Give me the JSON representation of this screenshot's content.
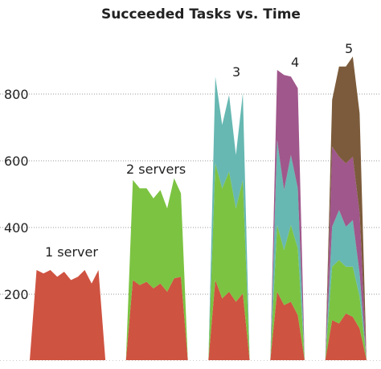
{
  "chart_data": {
    "type": "area",
    "title": "Succeeded Tasks vs. Time",
    "xlabel": "",
    "ylabel": "",
    "ylim": [
      0,
      990
    ],
    "y_ticks": [
      200,
      400,
      600,
      800
    ],
    "grid": true,
    "stacked": true,
    "colors": [
      "#cf5341",
      "#7cc342",
      "#67b8b2",
      "#a0578b",
      "#7b5b3b"
    ],
    "series": [
      {
        "values": [
          0,
          270,
          260,
          270,
          250,
          265,
          240,
          250,
          270,
          230,
          270,
          0,
          0,
          0,
          0,
          240,
          225,
          235,
          215,
          230,
          205,
          245,
          250,
          0,
          0,
          0,
          0,
          240,
          185,
          205,
          175,
          200,
          0,
          0,
          0,
          0,
          205,
          165,
          175,
          135,
          0,
          0,
          0,
          0,
          120,
          110,
          140,
          130,
          95,
          0
        ]
      },
      {
        "values": [
          0,
          0,
          0,
          0,
          0,
          0,
          0,
          0,
          0,
          0,
          0,
          0,
          0,
          0,
          0,
          300,
          290,
          280,
          270,
          280,
          250,
          300,
          250,
          0,
          0,
          0,
          0,
          350,
          330,
          360,
          280,
          340,
          0,
          0,
          0,
          0,
          200,
          165,
          230,
          200,
          0,
          0,
          0,
          0,
          160,
          190,
          140,
          150,
          95,
          0
        ]
      },
      {
        "values": [
          0,
          0,
          0,
          0,
          0,
          0,
          0,
          0,
          0,
          0,
          0,
          0,
          0,
          0,
          0,
          0,
          0,
          0,
          0,
          0,
          0,
          0,
          0,
          0,
          0,
          0,
          0,
          260,
          190,
          230,
          160,
          260,
          0,
          0,
          0,
          0,
          255,
          180,
          210,
          180,
          0,
          0,
          0,
          0,
          120,
          150,
          120,
          140,
          70,
          0
        ]
      },
      {
        "values": [
          0,
          0,
          0,
          0,
          0,
          0,
          0,
          0,
          0,
          0,
          0,
          0,
          0,
          0,
          0,
          0,
          0,
          0,
          0,
          0,
          0,
          0,
          0,
          0,
          0,
          0,
          0,
          0,
          0,
          0,
          0,
          0,
          0,
          0,
          0,
          0,
          210,
          345,
          235,
          300,
          0,
          0,
          0,
          0,
          240,
          160,
          190,
          190,
          180,
          0
        ]
      },
      {
        "values": [
          0,
          0,
          0,
          0,
          0,
          0,
          0,
          0,
          0,
          0,
          0,
          0,
          0,
          0,
          0,
          0,
          0,
          0,
          0,
          0,
          0,
          0,
          0,
          0,
          0,
          0,
          0,
          0,
          0,
          0,
          0,
          0,
          0,
          0,
          0,
          0,
          0,
          0,
          0,
          0,
          0,
          0,
          0,
          0,
          140,
          270,
          290,
          300,
          300,
          0
        ]
      }
    ],
    "annotations": [
      {
        "text": "1 server"
      },
      {
        "text": "2 servers"
      },
      {
        "text": "3"
      },
      {
        "text": "4"
      },
      {
        "text": "5"
      }
    ]
  }
}
